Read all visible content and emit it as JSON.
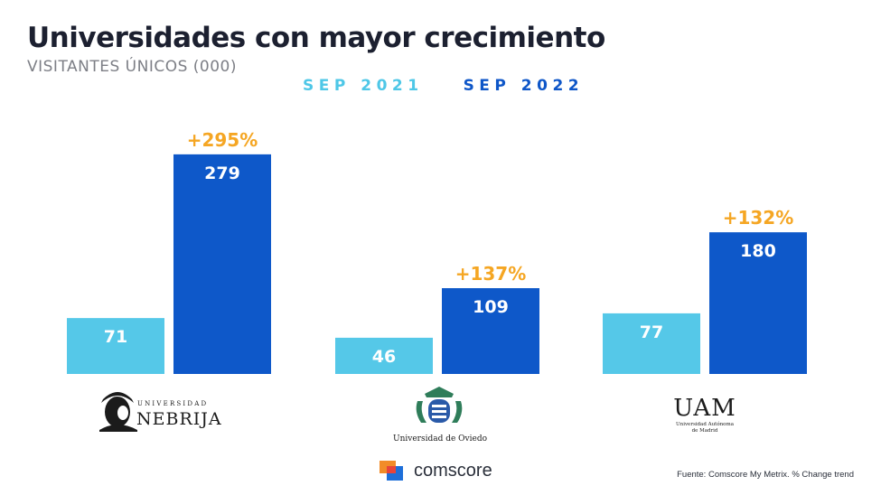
{
  "header": {
    "title": "Universidades con mayor crecimiento",
    "subtitle": "VISITANTES ÚNICOS (000)"
  },
  "legend": [
    "SEP 2021",
    "SEP 2022"
  ],
  "colors": {
    "sep2021": "#55c8e8",
    "sep2022": "#0e58c9",
    "growth": "#f5a623"
  },
  "chart_data": {
    "type": "bar",
    "title": "Universidades con mayor crecimiento",
    "subtitle": "VISITANTES ÚNICOS (000)",
    "categories": [
      "Universidad Nebrija",
      "Universidad de Oviedo",
      "UAM"
    ],
    "series": [
      {
        "name": "SEP 2021",
        "values": [
          71,
          46,
          77
        ]
      },
      {
        "name": "SEP 2022",
        "values": [
          279,
          109,
          180
        ]
      }
    ],
    "growth_labels": [
      "+295%",
      "+137%",
      "+132%"
    ],
    "ylim": [
      0,
      290
    ],
    "grid": false,
    "legend_position": "top"
  },
  "logos": {
    "nebrija": {
      "top": "UNIVERSIDAD",
      "name": "NEBRIJA"
    },
    "oviedo": {
      "name": "Universidad de Oviedo"
    },
    "uam": {
      "name": "UAM",
      "line1": "Universidad Autónoma",
      "line2": "de Madrid"
    }
  },
  "footer": {
    "brand": "comscore",
    "source": "Fuente: Comscore My Metrix. % Change trend"
  }
}
